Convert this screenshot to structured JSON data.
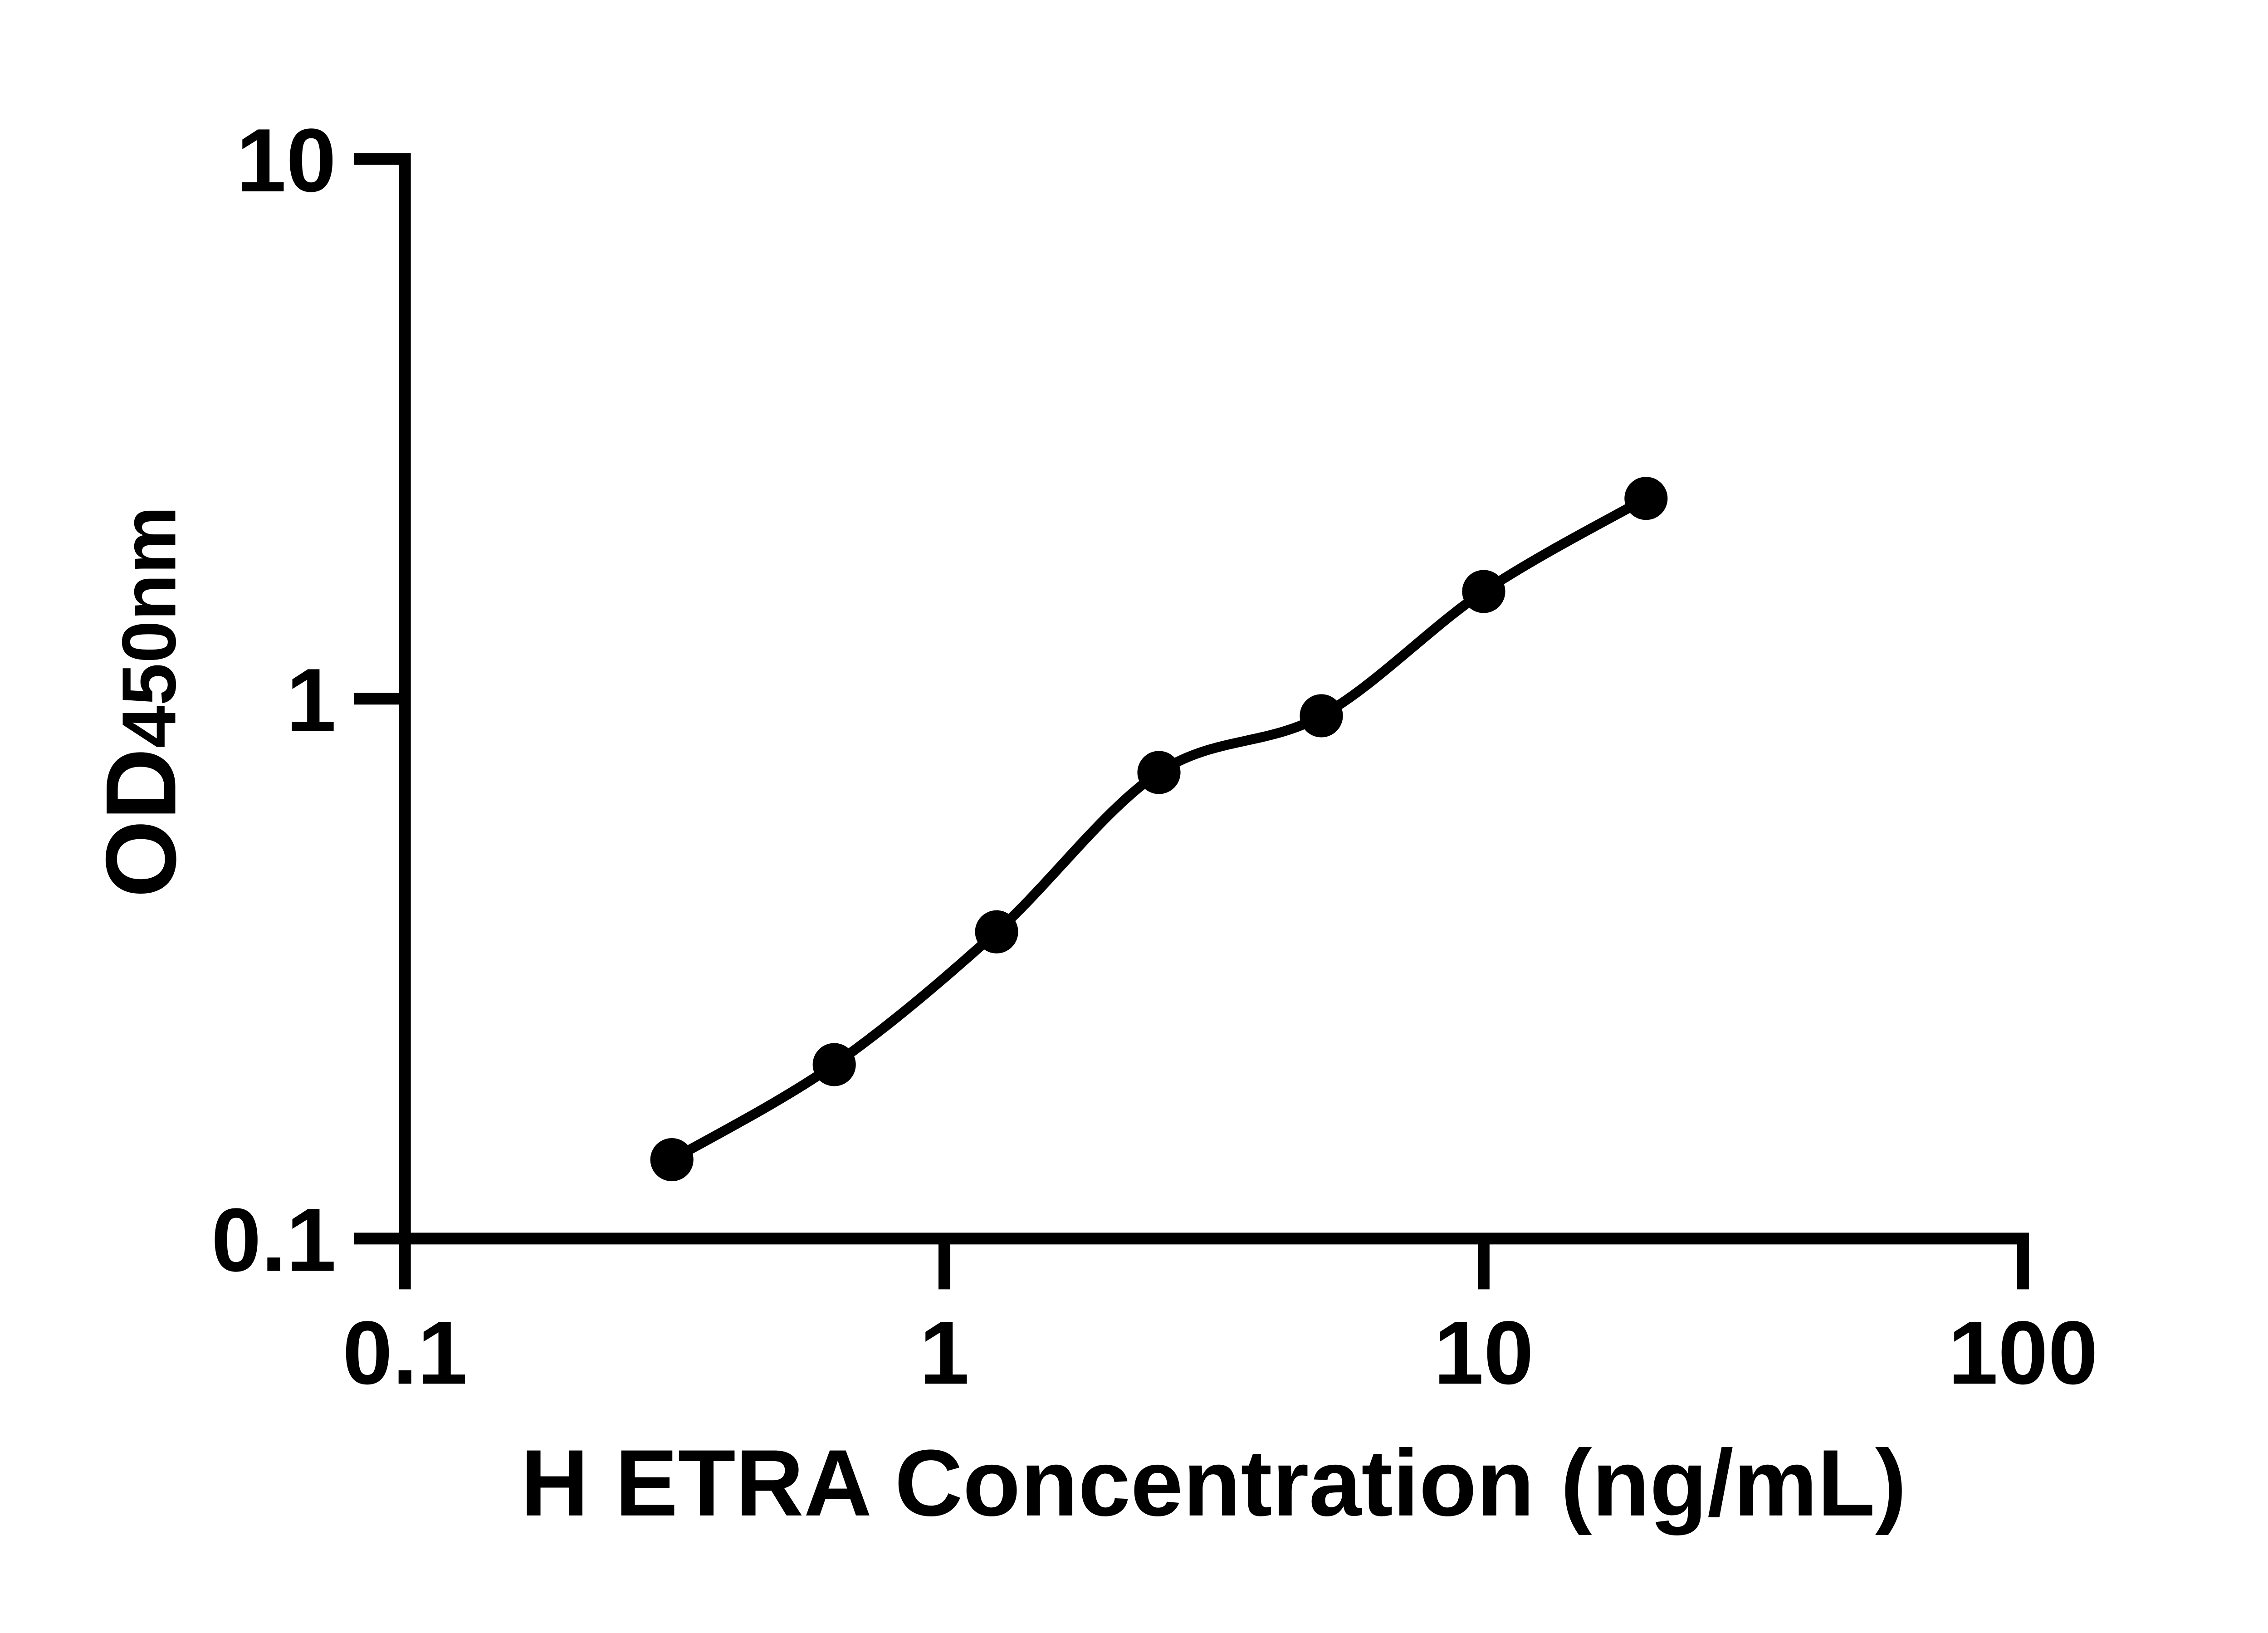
{
  "chart_data": {
    "type": "scatter",
    "title": "",
    "xlabel": "H ETRA Concentration (ng/mL)",
    "ylabel_main": "OD",
    "ylabel_sub": "450nm",
    "x_scale": "log10",
    "y_scale": "log10",
    "xlim": [
      0.1,
      100
    ],
    "ylim": [
      0.1,
      10
    ],
    "grid": false,
    "legend": null,
    "x_ticks": [
      {
        "value": 0.1,
        "label": "0.1"
      },
      {
        "value": 1,
        "label": "1"
      },
      {
        "value": 10,
        "label": "10"
      },
      {
        "value": 100,
        "label": "100"
      }
    ],
    "y_ticks": [
      {
        "value": 10,
        "label": "10"
      },
      {
        "value": 1,
        "label": "1"
      },
      {
        "value": 0.1,
        "label": "0.1"
      }
    ],
    "series": [
      {
        "marker": "filled-circle",
        "fit_line": true,
        "color": "#000000",
        "points": [
          {
            "x": 0.3125,
            "y": 0.14
          },
          {
            "x": 0.625,
            "y": 0.21
          },
          {
            "x": 1.25,
            "y": 0.37
          },
          {
            "x": 2.5,
            "y": 0.73
          },
          {
            "x": 5,
            "y": 0.93
          },
          {
            "x": 10,
            "y": 1.58
          },
          {
            "x": 20,
            "y": 2.35
          }
        ]
      }
    ]
  },
  "colors": {
    "background": "#ffffff",
    "axis": "#000000",
    "series": "#000000"
  }
}
